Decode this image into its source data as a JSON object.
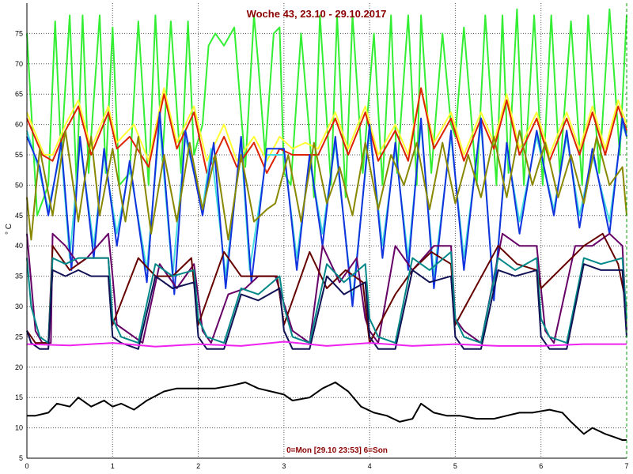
{
  "chart_data": {
    "type": "line",
    "title": "Woche 43, 23.10 - 29.10.2017",
    "ylabel": "° C",
    "xlabel": "",
    "footer_note": "0=Mon [29.10 23:53] 6=Son",
    "xlim": [
      0,
      7
    ],
    "ylim": [
      5,
      80
    ],
    "grid": true,
    "legend": "none",
    "x_ticks": [
      0,
      1,
      2,
      3,
      4,
      5,
      6,
      7
    ],
    "y_ticks": [
      5,
      10,
      15,
      20,
      25,
      30,
      35,
      40,
      45,
      50,
      55,
      60,
      65,
      70,
      75
    ],
    "colors": {
      "title": "#8b0000",
      "footer_note": "#8b0000",
      "grid": "#555555",
      "right_edge": "#00a000"
    },
    "series": [
      {
        "color": "#33ee33",
        "x": [
          0,
          0.12,
          0.25,
          0.33,
          0.4,
          0.5,
          0.58,
          0.65,
          0.72,
          0.85,
          0.92,
          1.0,
          1.08,
          1.2,
          1.3,
          1.42,
          1.5,
          1.58,
          1.68,
          1.8,
          1.88,
          1.95,
          2.05,
          2.12,
          2.2,
          2.3,
          2.42,
          2.55,
          2.65,
          2.7,
          2.78,
          2.88,
          2.95,
          3.0,
          3.08,
          3.2,
          3.3,
          3.35,
          3.42,
          3.55,
          3.62,
          3.72,
          3.8,
          3.92,
          4.05,
          4.15,
          4.25,
          4.32,
          4.45,
          4.55,
          4.6,
          4.72,
          4.85,
          4.95,
          5.0,
          5.1,
          5.25,
          5.35,
          5.48,
          5.55,
          5.62,
          5.72,
          5.8,
          5.92,
          6.02,
          6.12,
          6.22,
          6.35,
          6.48,
          6.55,
          6.68,
          6.8,
          6.92,
          7.0
        ],
        "values": [
          75,
          45,
          50,
          77,
          55,
          78,
          50,
          78,
          52,
          78,
          52,
          76,
          50,
          52,
          77,
          50,
          78,
          54,
          77,
          52,
          77,
          55,
          60,
          73,
          75,
          73,
          76,
          53,
          78,
          70,
          55,
          75,
          76,
          52,
          50,
          75,
          58,
          48,
          78,
          50,
          78,
          48,
          78,
          52,
          75,
          50,
          78,
          52,
          78,
          50,
          78,
          52,
          75,
          60,
          58,
          76,
          50,
          78,
          50,
          78,
          52,
          79,
          50,
          78,
          50,
          78,
          52,
          77,
          50,
          78,
          52,
          79,
          55,
          78
        ]
      },
      {
        "color": "#ffff33",
        "x": [
          0,
          0.2,
          0.3,
          0.45,
          0.6,
          0.75,
          0.95,
          1.05,
          1.25,
          1.42,
          1.6,
          1.75,
          1.95,
          2.1,
          2.3,
          2.45,
          2.65,
          2.8,
          2.95,
          3.1,
          3.25,
          3.4,
          3.6,
          3.75,
          3.95,
          4.1,
          4.3,
          4.45,
          4.6,
          4.75,
          4.95,
          5.1,
          5.3,
          5.45,
          5.6,
          5.75,
          5.95,
          6.1,
          6.3,
          6.45,
          6.6,
          6.75,
          6.9,
          7.0
        ],
        "values": [
          62,
          55,
          55,
          60,
          64,
          56,
          63,
          57,
          60,
          54,
          66,
          57,
          63,
          54,
          60,
          54,
          58,
          54,
          58,
          56,
          57,
          56,
          62,
          56,
          63,
          55,
          60,
          55,
          66,
          57,
          62,
          55,
          62,
          57,
          65,
          56,
          62,
          55,
          62,
          56,
          63,
          56,
          64,
          60
        ]
      },
      {
        "color": "#dd2200",
        "x": [
          0,
          0.18,
          0.3,
          0.45,
          0.6,
          0.75,
          0.95,
          1.05,
          1.2,
          1.42,
          1.6,
          1.75,
          1.95,
          2.1,
          2.3,
          2.45,
          2.65,
          2.8,
          2.95,
          3.1,
          3.25,
          3.4,
          3.6,
          3.75,
          3.95,
          4.1,
          4.3,
          4.45,
          4.6,
          4.75,
          4.95,
          5.1,
          5.3,
          5.45,
          5.6,
          5.75,
          5.95,
          6.1,
          6.3,
          6.45,
          6.6,
          6.75,
          6.9,
          7.0
        ],
        "values": [
          61,
          55,
          54,
          59,
          63,
          55,
          62,
          56,
          58,
          53,
          65,
          56,
          62,
          52,
          58,
          53,
          57,
          52,
          56,
          55,
          55,
          55,
          61,
          55,
          62,
          54,
          59,
          54,
          66,
          56,
          61,
          54,
          61,
          56,
          64,
          55,
          61,
          54,
          61,
          55,
          62,
          55,
          63,
          59
        ]
      },
      {
        "color": "#44dddd",
        "x": [
          0,
          0.15,
          0.25,
          0.4,
          0.5,
          0.62,
          0.78,
          0.9,
          1.05,
          1.2,
          1.4,
          1.55,
          1.7,
          1.85,
          2.05,
          2.15,
          2.32,
          2.5,
          2.6,
          2.8,
          3.0,
          3.15,
          3.3,
          3.45,
          3.6,
          3.8,
          4.0,
          4.15,
          4.3,
          4.45,
          4.6,
          4.75,
          4.95,
          5.1,
          5.3,
          5.45,
          5.6,
          5.75,
          5.95,
          6.15,
          6.3,
          6.45,
          6.6,
          6.8,
          6.95,
          7.0
        ],
        "values": [
          59,
          52,
          46,
          56,
          38,
          57,
          40,
          55,
          42,
          53,
          36,
          60,
          35,
          58,
          46,
          56,
          35,
          57,
          36,
          55,
          55,
          38,
          54,
          42,
          57,
          31,
          59,
          40,
          56,
          38,
          60,
          35,
          58,
          38,
          60,
          32,
          56,
          44,
          58,
          46,
          58,
          45,
          55,
          44,
          60,
          58
        ]
      },
      {
        "color": "#1133dd",
        "x": [
          0,
          0.15,
          0.25,
          0.4,
          0.52,
          0.62,
          0.78,
          0.9,
          1.05,
          1.2,
          1.4,
          1.55,
          1.72,
          1.85,
          2.05,
          2.18,
          2.32,
          2.5,
          2.62,
          2.8,
          3.0,
          3.15,
          3.3,
          3.45,
          3.6,
          3.8,
          4.0,
          4.15,
          4.3,
          4.45,
          4.6,
          4.75,
          4.95,
          5.1,
          5.3,
          5.45,
          5.6,
          5.75,
          5.95,
          6.15,
          6.3,
          6.45,
          6.6,
          6.8,
          6.95,
          7.0
        ],
        "values": [
          58,
          53,
          45,
          57,
          36,
          58,
          38,
          56,
          40,
          54,
          34,
          62,
          32,
          59,
          45,
          57,
          33,
          58,
          34,
          56,
          56,
          36,
          55,
          40,
          58,
          30,
          60,
          38,
          57,
          36,
          61,
          33,
          59,
          36,
          61,
          31,
          57,
          42,
          59,
          45,
          59,
          43,
          56,
          42,
          61,
          58
        ]
      },
      {
        "color": "#888800",
        "x": [
          0,
          0.05,
          0.15,
          0.3,
          0.45,
          0.6,
          0.75,
          0.85,
          1.0,
          1.15,
          1.3,
          1.45,
          1.6,
          1.75,
          1.9,
          2.05,
          2.2,
          2.35,
          2.5,
          2.65,
          2.8,
          2.9,
          3.05,
          3.2,
          3.35,
          3.5,
          3.65,
          3.8,
          3.95,
          4.1,
          4.25,
          4.4,
          4.55,
          4.7,
          4.85,
          5.0,
          5.15,
          5.3,
          5.45,
          5.6,
          5.75,
          5.9,
          6.05,
          6.2,
          6.35,
          6.5,
          6.65,
          6.8,
          6.95,
          7.0
        ],
        "values": [
          48,
          41,
          56,
          45,
          59,
          44,
          58,
          45,
          56,
          44,
          58,
          42,
          55,
          44,
          57,
          46,
          55,
          41,
          55,
          44,
          46,
          47,
          55,
          44,
          57,
          47,
          53,
          45,
          57,
          46,
          55,
          50,
          57,
          46,
          57,
          47,
          55,
          48,
          58,
          48,
          59,
          50,
          57,
          48,
          55,
          47,
          58,
          50,
          53,
          45
        ]
      },
      {
        "color": "#660066",
        "x": [
          0,
          0.1,
          0.18,
          0.28,
          0.3,
          0.45,
          0.6,
          0.7,
          0.95,
          1.0,
          1.05,
          1.35,
          1.55,
          1.75,
          1.95,
          2.05,
          2.15,
          2.35,
          2.55,
          2.7,
          2.9,
          3.1,
          3.3,
          3.45,
          3.65,
          3.85,
          3.95,
          4.0,
          4.1,
          4.3,
          4.5,
          4.75,
          4.95,
          5.0,
          5.1,
          5.3,
          5.55,
          5.75,
          5.95,
          6.05,
          6.15,
          6.4,
          6.6,
          6.8,
          6.95,
          7.0
        ],
        "values": [
          42,
          26,
          24,
          24,
          42,
          40,
          37,
          38,
          42,
          35,
          27,
          24,
          37,
          33,
          37,
          26,
          24,
          32,
          33,
          35,
          35,
          26,
          24,
          40,
          34,
          38,
          28,
          26,
          24,
          40,
          36,
          40,
          40,
          28,
          26,
          24,
          42,
          40,
          40,
          26,
          24,
          40,
          40,
          42,
          40,
          26
        ]
      },
      {
        "color": "#660000",
        "x": [
          0,
          0.1,
          0.25,
          0.3,
          0.5,
          0.7,
          0.95,
          1.0,
          1.3,
          1.5,
          1.7,
          1.92,
          2.0,
          2.3,
          2.5,
          2.7,
          2.92,
          3.0,
          3.3,
          3.5,
          3.72,
          3.92,
          4.0,
          4.3,
          4.5,
          4.72,
          4.95,
          5.0,
          5.5,
          5.72,
          5.95,
          6.0,
          6.5,
          6.72,
          6.9,
          7.0
        ],
        "values": [
          26,
          24,
          24,
          40,
          36,
          38,
          38,
          27,
          38,
          35,
          35,
          38,
          27,
          39,
          35,
          35,
          35,
          27,
          39,
          33,
          36,
          34,
          24,
          32,
          36,
          39,
          37,
          27,
          40,
          37,
          36,
          33,
          40,
          42,
          37,
          30
        ]
      },
      {
        "color": "#008888",
        "x": [
          0,
          0.05,
          0.15,
          0.25,
          0.3,
          0.45,
          0.6,
          0.75,
          0.95,
          1.0,
          1.1,
          1.3,
          1.5,
          1.7,
          1.95,
          2.0,
          2.1,
          2.3,
          2.5,
          2.7,
          2.95,
          3.0,
          3.1,
          3.3,
          3.5,
          3.7,
          3.95,
          4.0,
          4.1,
          4.3,
          4.5,
          4.7,
          4.95,
          5.0,
          5.1,
          5.3,
          5.5,
          5.7,
          5.95,
          6.0,
          6.1,
          6.3,
          6.5,
          6.7,
          6.95,
          7.0
        ],
        "values": [
          38,
          30,
          25,
          24,
          38,
          37,
          38,
          38,
          38,
          28,
          25,
          24,
          37,
          35,
          36,
          28,
          25,
          24,
          33,
          32,
          35,
          30,
          25,
          24,
          37,
          34,
          37,
          28,
          25,
          24,
          38,
          36,
          39,
          28,
          25,
          24,
          38,
          36,
          38,
          28,
          25,
          24,
          38,
          37,
          38,
          28
        ]
      },
      {
        "color": "#111155",
        "x": [
          0,
          0.05,
          0.15,
          0.25,
          0.3,
          0.45,
          0.6,
          0.75,
          0.95,
          1.0,
          1.1,
          1.3,
          1.5,
          1.7,
          1.95,
          2.0,
          2.1,
          2.3,
          2.5,
          2.7,
          2.95,
          3.0,
          3.1,
          3.3,
          3.5,
          3.7,
          3.95,
          4.0,
          4.1,
          4.3,
          4.5,
          4.7,
          4.95,
          5.0,
          5.1,
          5.3,
          5.5,
          5.7,
          5.95,
          6.0,
          6.1,
          6.3,
          6.5,
          6.7,
          6.95,
          7.0
        ],
        "values": [
          26,
          24,
          23,
          23,
          36,
          35,
          36,
          35,
          35,
          25,
          24,
          23,
          35,
          33,
          34,
          25,
          23,
          23,
          32,
          31,
          33,
          26,
          23,
          23,
          35,
          32,
          34,
          25,
          23,
          23,
          36,
          34,
          35,
          25,
          23,
          23,
          36,
          35,
          36,
          25,
          23,
          23,
          37,
          36,
          36,
          25
        ]
      },
      {
        "color": "#ee22ee",
        "x": [
          0,
          0.5,
          1.0,
          1.5,
          2.0,
          2.5,
          3.0,
          3.5,
          4.0,
          4.5,
          5.0,
          5.5,
          6.0,
          6.5,
          7.0
        ],
        "values": [
          23.8,
          23.6,
          24.0,
          23.4,
          23.8,
          23.5,
          24.2,
          23.5,
          24.0,
          23.5,
          23.8,
          23.5,
          23.5,
          23.8,
          23.8
        ]
      },
      {
        "color": "#000000",
        "x": [
          0,
          0.1,
          0.25,
          0.35,
          0.5,
          0.6,
          0.75,
          0.9,
          1.0,
          1.1,
          1.25,
          1.4,
          1.6,
          1.75,
          1.85,
          2.0,
          2.2,
          2.4,
          2.55,
          2.7,
          2.85,
          3.0,
          3.1,
          3.3,
          3.45,
          3.6,
          3.75,
          3.9,
          4.05,
          4.2,
          4.35,
          4.5,
          4.6,
          4.75,
          4.9,
          5.05,
          5.25,
          5.45,
          5.6,
          5.75,
          5.9,
          6.1,
          6.25,
          6.35,
          6.5,
          6.6,
          6.75,
          6.85,
          6.95,
          7.0
        ],
        "values": [
          12,
          12,
          12.5,
          14,
          13.5,
          15,
          13.5,
          14.5,
          13.5,
          14,
          13,
          14.5,
          16,
          16.5,
          16.5,
          16.5,
          16.5,
          17,
          17.5,
          16.5,
          16,
          15.5,
          14.5,
          15,
          16.5,
          17.5,
          16,
          13.5,
          12.5,
          12,
          11,
          11.5,
          14,
          12.5,
          12,
          12,
          11.5,
          11.5,
          12,
          12.5,
          12.5,
          13,
          12.5,
          11,
          9,
          10,
          9,
          8.5,
          8,
          8
        ]
      }
    ]
  }
}
